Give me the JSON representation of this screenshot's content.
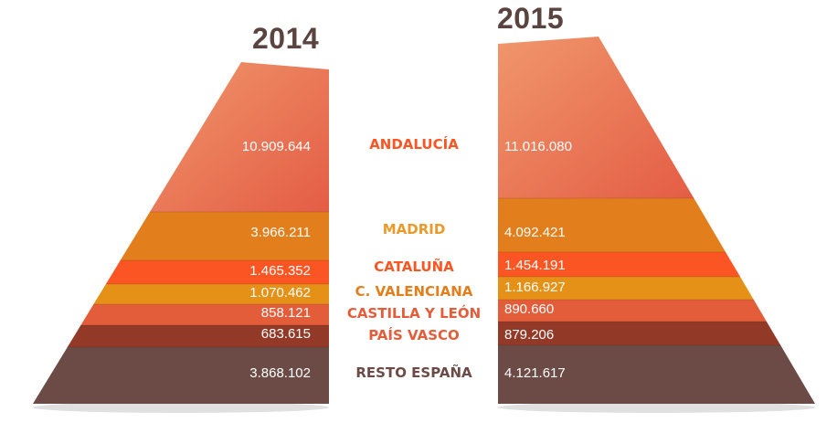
{
  "colors": {
    "andalucia": "#e8714e",
    "madrid": "#e27e1b",
    "cataluna": "#fa5522",
    "c_valenciana": "#e59117",
    "castilla_y_leon": "#e35d3a",
    "pais_vasco": "#933927",
    "resto_espana": "#6c4a45",
    "title": "#5b4340",
    "value_text": "#ffffff"
  },
  "chart_data": {
    "type": "area",
    "title": "",
    "categories": [
      "ANDALUCÍA",
      "MADRID",
      "CATALUÑA",
      "C. VALENCIANA",
      "CASTILLA Y LEÓN",
      "PAÍS VASCO",
      "RESTO ESPAÑA"
    ],
    "series": [
      {
        "name": "2014",
        "values": [
          10909644,
          3966211,
          1465352,
          1070462,
          858121,
          683615,
          3868102
        ],
        "labels": [
          "10.909.644",
          "3.966.211",
          "1.465.352",
          "1.070.462",
          "858.121",
          "683.615",
          "3.868.102"
        ]
      },
      {
        "name": "2015",
        "values": [
          11016080,
          4092421,
          1454191,
          1166927,
          890660,
          879206,
          4121617
        ],
        "labels": [
          "11.016.080",
          "4.092.421",
          "1.454.191",
          "1.166.927",
          "890.660",
          "879.206",
          "4.121.617"
        ]
      }
    ],
    "region_colors": [
      "#fa5522",
      "#e99a2a",
      "#fa5522",
      "#e27e1b",
      "#e35d3a",
      "#e35d3a",
      "#6c4a45"
    ]
  }
}
